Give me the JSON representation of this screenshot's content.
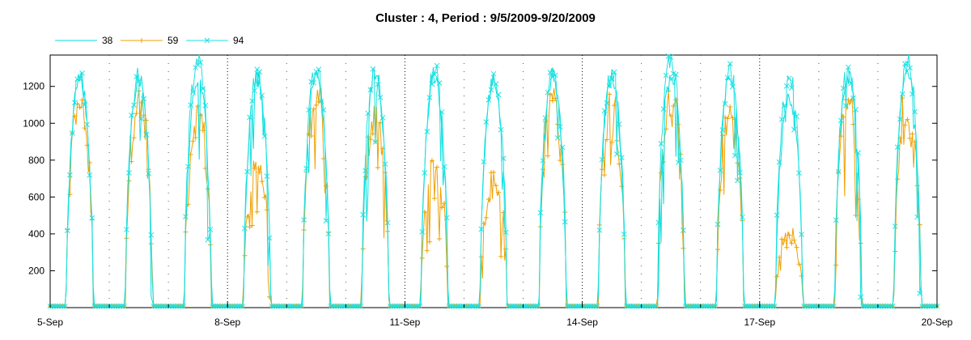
{
  "chart_data": {
    "type": "line",
    "title": "Cluster : 4, Period : 9/5/2009-9/20/2009",
    "xlabel": "",
    "ylabel": "",
    "x_range_days": [
      0,
      15
    ],
    "xlim": [
      "2009-09-05",
      "2009-09-20"
    ],
    "ylim": [
      0,
      1370
    ],
    "grid": {
      "x_major": "dotted",
      "x_minor": "dotted-sparse",
      "y": "off"
    },
    "legend": {
      "placement": "top-left"
    },
    "x_ticks": [
      {
        "day": 0,
        "label": "5-Sep"
      },
      {
        "day": 3,
        "label": "8-Sep"
      },
      {
        "day": 6,
        "label": "11-Sep"
      },
      {
        "day": 9,
        "label": "14-Sep"
      },
      {
        "day": 12,
        "label": "17-Sep"
      },
      {
        "day": 15,
        "label": "20-Sep"
      }
    ],
    "y_ticks": [
      200,
      400,
      600,
      800,
      1000,
      1200
    ],
    "series": [
      {
        "name": "38",
        "color": "#00e0e0",
        "marker": "none",
        "daily_peaks": [
          1250,
          1240,
          1250,
          1240,
          1260,
          1270,
          1240,
          1230,
          1260,
          1250,
          1270,
          1260,
          1150,
          1260,
          1280
        ]
      },
      {
        "name": "59",
        "color": "#f0a000",
        "marker": "plus",
        "daily_peaks": [
          1120,
          1150,
          1060,
          800,
          1150,
          1070,
          780,
          720,
          1150,
          1130,
          1140,
          1050,
          420,
          1100,
          1130
        ]
      },
      {
        "name": "94",
        "color": "#20e0e0",
        "marker": "x",
        "daily_peaks": [
          1260,
          1260,
          1340,
          1250,
          1280,
          1300,
          1280,
          1230,
          1300,
          1280,
          1350,
          1280,
          1260,
          1280,
          1330
        ]
      }
    ]
  }
}
